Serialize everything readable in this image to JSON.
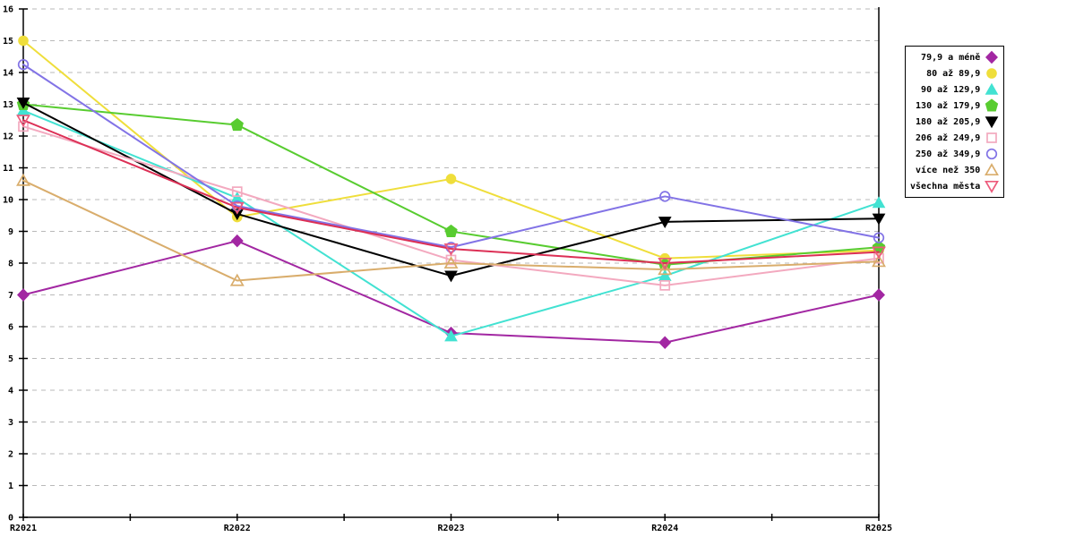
{
  "chart_data": {
    "type": "line",
    "title": "",
    "xlabel": "",
    "ylabel": "",
    "categories": [
      "R2021",
      "R2022",
      "R2023",
      "R2024",
      "R2025"
    ],
    "ylim": [
      0,
      16
    ],
    "y_tick_step": 1,
    "grid": "horizontal-dashed",
    "legend_position": "right-outside",
    "series": [
      {
        "name": "79,9 a méně",
        "color": "#A227A2",
        "marker": "diamond",
        "fill": "filled",
        "values": [
          7.0,
          8.7,
          5.8,
          5.5,
          7.0
        ]
      },
      {
        "name": "80 až 89,9",
        "color": "#EFDE3B",
        "marker": "circle",
        "fill": "filled",
        "values": [
          15.0,
          9.45,
          10.65,
          8.15,
          8.4
        ]
      },
      {
        "name": "90 až 129,9",
        "color": "#42E2D2",
        "marker": "triangle-up",
        "fill": "filled",
        "values": [
          12.8,
          10.05,
          5.7,
          7.6,
          9.9
        ]
      },
      {
        "name": "130 až 179,9",
        "color": "#58CC30",
        "marker": "pentagon",
        "fill": "filled",
        "values": [
          13.0,
          12.35,
          9.0,
          7.95,
          8.5
        ]
      },
      {
        "name": "180 až 205,9",
        "color": "#000000",
        "marker": "triangle-down",
        "fill": "filled",
        "values": [
          13.05,
          9.55,
          7.6,
          9.3,
          9.4
        ]
      },
      {
        "name": "206 až 249,9",
        "color": "#F3A9BF",
        "marker": "square",
        "fill": "open",
        "values": [
          12.3,
          10.25,
          8.1,
          7.3,
          8.15
        ]
      },
      {
        "name": "250 až 349,9",
        "color": "#8273E6",
        "marker": "circle",
        "fill": "open",
        "values": [
          14.25,
          9.8,
          8.5,
          10.1,
          8.8
        ]
      },
      {
        "name": "více než 350",
        "color": "#D9AD6C",
        "marker": "triangle-up",
        "fill": "open",
        "values": [
          10.6,
          7.45,
          8.0,
          7.8,
          8.05
        ]
      },
      {
        "name": "všechna města",
        "color": "#ED5B7C",
        "line_color": "#DC2F55",
        "marker": "triangle-down",
        "fill": "open",
        "values": [
          12.5,
          9.75,
          8.45,
          8.0,
          8.35
        ]
      }
    ],
    "colors": {
      "gridline": "#b9b9b9",
      "axis": "#000000",
      "text": "#000000",
      "background": "#ffffff"
    }
  }
}
